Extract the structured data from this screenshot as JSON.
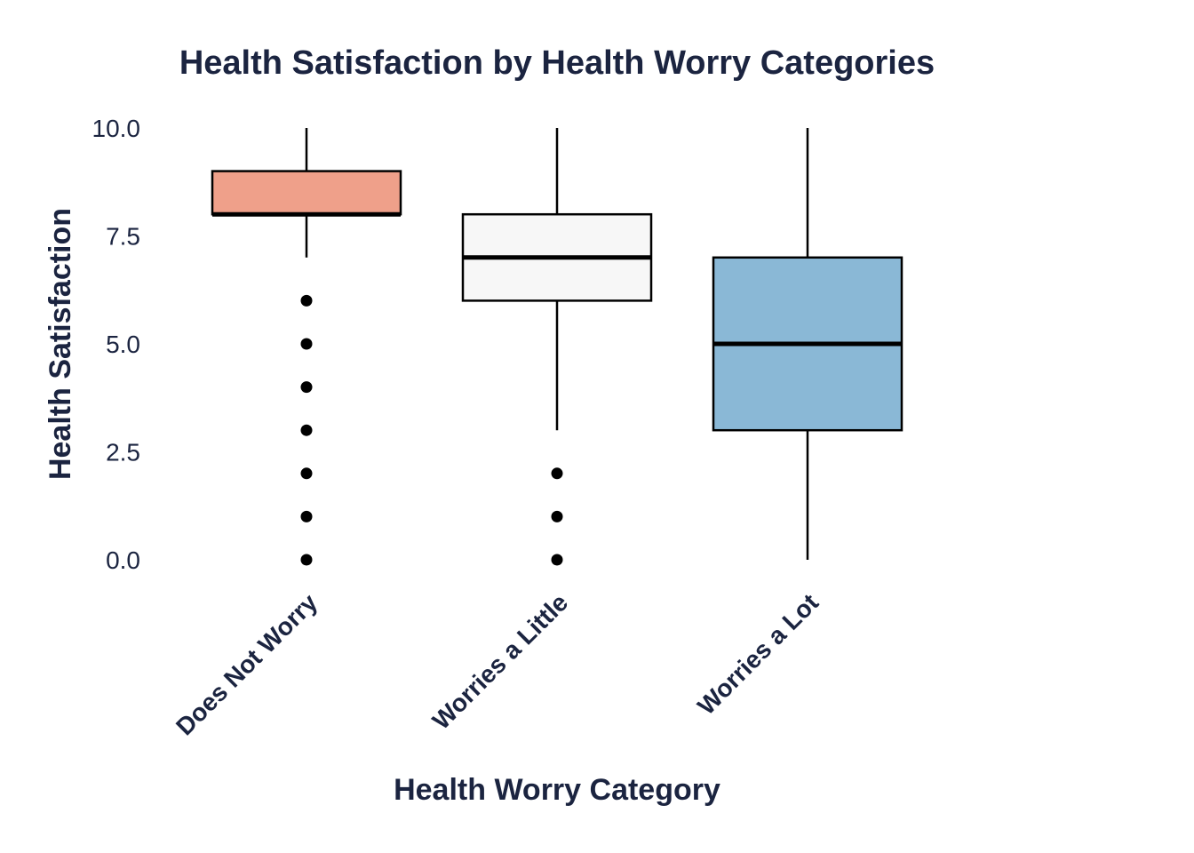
{
  "chart_data": {
    "type": "box",
    "title": "Health Satisfaction by Health Worry Categories",
    "xlabel": "Health Worry Category",
    "ylabel": "Health Satisfaction",
    "ylim": [
      0,
      10
    ],
    "yticks": [
      0,
      2.5,
      5,
      7.5,
      10
    ],
    "ytick_labels": [
      "0.0",
      "2.5",
      "5.0",
      "7.5",
      "10.0"
    ],
    "grid": false,
    "legend": "none",
    "categories": [
      "Does Not Worry",
      "Worries a Little",
      "Worries a Lot"
    ],
    "boxes": [
      {
        "category": "Does Not Worry",
        "whisker_low": 7,
        "q1": 8,
        "median": 8,
        "q3": 9,
        "whisker_high": 10,
        "outliers": [
          0,
          1,
          2,
          3,
          4,
          5,
          6
        ],
        "color": "#efa08a"
      },
      {
        "category": "Worries a Little",
        "whisker_low": 3,
        "q1": 6,
        "median": 7,
        "q3": 8,
        "whisker_high": 10,
        "outliers": [
          0,
          1,
          2
        ],
        "color": "#f7f7f7"
      },
      {
        "category": "Worries a Lot",
        "whisker_low": 0,
        "q1": 3,
        "median": 5,
        "q3": 7,
        "whisker_high": 10,
        "outliers": [],
        "color": "#8ab8d6"
      }
    ]
  }
}
